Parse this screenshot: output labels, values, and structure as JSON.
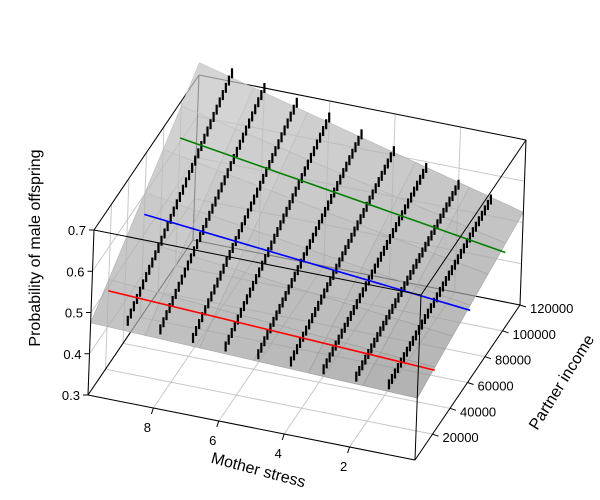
{
  "chart_data": {
    "type": "surface3d",
    "title": "",
    "zlabel": "Probability of male offspring",
    "xlabel": "Mother stress",
    "ylabel": "Partner income",
    "z_ticks": [
      "0.3",
      "0.4",
      "0.5",
      "0.6",
      "0.7"
    ],
    "x_ticks": [
      "8",
      "6",
      "4",
      "2"
    ],
    "y_ticks": [
      "20000",
      "40000",
      "60000",
      "80000",
      "100000",
      "120000"
    ],
    "zlim": [
      0.3,
      0.7
    ],
    "xlim": [
      0,
      10
    ],
    "ylim": [
      0,
      120000
    ],
    "surface": {
      "corners": [
        {
          "stress": 10,
          "income": 0,
          "probability": 0.475
        },
        {
          "stress": 0,
          "income": 0,
          "probability": 0.45
        },
        {
          "stress": 10,
          "income": 120000,
          "probability": 0.73
        },
        {
          "stress": 0,
          "income": 120000,
          "probability": 0.525
        }
      ],
      "color": "#a8a8a8"
    },
    "series": [
      {
        "name": "",
        "color": "#ff0000",
        "income": 20000,
        "stress_range": [
          10,
          0
        ],
        "probability": [
          0.49,
          0.455
        ]
      },
      {
        "name": "",
        "color": "#0000ff",
        "income": 60000,
        "stress_range": [
          10,
          0
        ],
        "probability": [
          0.55,
          0.475
        ]
      },
      {
        "name": "",
        "color": "#008000",
        "income": 100000,
        "stress_range": [
          10,
          0
        ],
        "probability": [
          0.61,
          0.49
        ]
      }
    ],
    "rug_marks": [
      {
        "stress": 9,
        "income_range": [
          5000,
          120000
        ],
        "probability_range": [
          0.48,
          0.72
        ]
      },
      {
        "stress": 8,
        "income_range": [
          5000,
          120000
        ],
        "probability_range": [
          0.475,
          0.7
        ]
      },
      {
        "stress": 7,
        "income_range": [
          5000,
          120000
        ],
        "probability_range": [
          0.47,
          0.68
        ]
      },
      {
        "stress": 6,
        "income_range": [
          5000,
          120000
        ],
        "probability_range": [
          0.465,
          0.66
        ]
      },
      {
        "stress": 5,
        "income_range": [
          5000,
          120000
        ],
        "probability_range": [
          0.462,
          0.635
        ]
      },
      {
        "stress": 4,
        "income_range": [
          5000,
          120000
        ],
        "probability_range": [
          0.46,
          0.61
        ]
      },
      {
        "stress": 3,
        "income_range": [
          5000,
          120000
        ],
        "probability_range": [
          0.457,
          0.585
        ]
      },
      {
        "stress": 2,
        "income_range": [
          5000,
          120000
        ],
        "probability_range": [
          0.455,
          0.56
        ]
      },
      {
        "stress": 1,
        "income_range": [
          5000,
          120000
        ],
        "probability_range": [
          0.452,
          0.54
        ]
      }
    ],
    "grid": true,
    "legend": "none"
  }
}
